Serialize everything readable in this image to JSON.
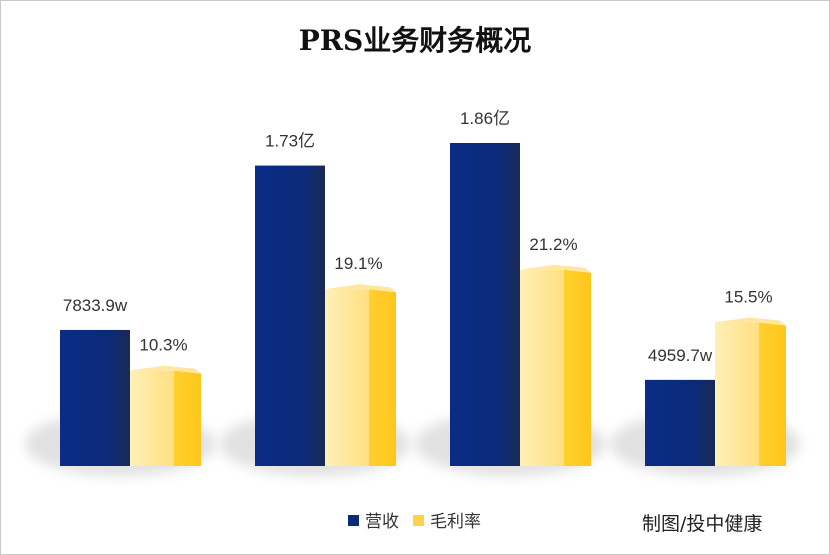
{
  "chart_data": {
    "type": "bar",
    "title": "PRS业务财务概况",
    "categories": [
      "",
      "",
      "",
      ""
    ],
    "series": [
      {
        "name": "营收",
        "color": "#0b2a78",
        "unit": "万元",
        "values": [
          7833.9,
          17300,
          18600,
          4959.7
        ],
        "data_labels": [
          "7833.9w",
          "1.73亿",
          "1.86亿",
          "4959.7w"
        ]
      },
      {
        "name": "毛利率",
        "color": "#ffd24a",
        "unit": "%",
        "values": [
          10.3,
          19.1,
          21.2,
          15.5
        ],
        "data_labels": [
          "10.3%",
          "19.1%",
          "21.2%",
          "15.5%"
        ]
      }
    ],
    "xlabel": "",
    "ylabel": "",
    "legend_position": "bottom"
  },
  "credit": "制图/投中健康"
}
